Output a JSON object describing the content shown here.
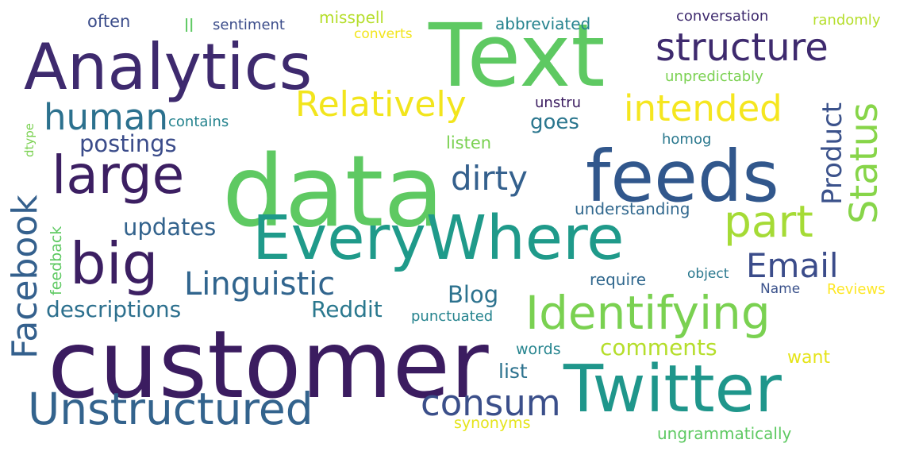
{
  "words": [
    {
      "text": "data",
      "color": "#5ec962"
    },
    {
      "text": "customer",
      "color": "#3b1c60"
    },
    {
      "text": "Text",
      "color": "#5ec962"
    },
    {
      "text": "Analytics",
      "color": "#3e2a6e"
    },
    {
      "text": "EveryWhere",
      "color": "#1f9a8a"
    },
    {
      "text": "feeds",
      "color": "#31578c"
    },
    {
      "text": "Twitter",
      "color": "#1f968b"
    },
    {
      "text": "Identifying",
      "color": "#7ad151"
    },
    {
      "text": "Unstructured",
      "color": "#33638d"
    },
    {
      "text": "large",
      "color": "#3c1f62"
    },
    {
      "text": "big",
      "color": "#3c1f62"
    },
    {
      "text": "part",
      "color": "#a5db36"
    },
    {
      "text": "structure",
      "color": "#3e2a6e"
    },
    {
      "text": "human",
      "color": "#2c718e"
    },
    {
      "text": "Relatively",
      "color": "#f2e51d"
    },
    {
      "text": "intended",
      "color": "#f5e61f"
    },
    {
      "text": "Facebook",
      "color": "#34608d"
    },
    {
      "text": "Status",
      "color": "#87d549"
    },
    {
      "text": "Product",
      "color": "#3b528b"
    },
    {
      "text": "dirty",
      "color": "#34608d"
    },
    {
      "text": "Linguistic",
      "color": "#31658e"
    },
    {
      "text": "Email",
      "color": "#3b4c8a"
    },
    {
      "text": "consum",
      "color": "#3b4f8a"
    },
    {
      "text": "postings",
      "color": "#3b4c8a"
    },
    {
      "text": "updates",
      "color": "#33638d"
    },
    {
      "text": "descriptions",
      "color": "#2d708e"
    },
    {
      "text": "Reddit",
      "color": "#2a788e"
    },
    {
      "text": "Blog",
      "color": "#2c728e"
    },
    {
      "text": "comments",
      "color": "#b5de2b"
    },
    {
      "text": "list",
      "color": "#2c728e"
    },
    {
      "text": "goes",
      "color": "#2a768e"
    },
    {
      "text": "listen",
      "color": "#7ad151"
    },
    {
      "text": "understanding",
      "color": "#31688e"
    },
    {
      "text": "require",
      "color": "#31688e"
    },
    {
      "text": "punctuated",
      "color": "#25838e"
    },
    {
      "text": "words",
      "color": "#25848e"
    },
    {
      "text": "synonyms",
      "color": "#e5e419"
    },
    {
      "text": "ungrammatically",
      "color": "#5ec962"
    },
    {
      "text": "want",
      "color": "#e5e419"
    },
    {
      "text": "Reviews",
      "color": "#fde725"
    },
    {
      "text": "Name",
      "color": "#3b528b"
    },
    {
      "text": "object",
      "color": "#2a788e"
    },
    {
      "text": "homog",
      "color": "#2a788e"
    },
    {
      "text": "unstru",
      "color": "#3b1c60"
    },
    {
      "text": "contains",
      "color": "#25838e"
    },
    {
      "text": "feedback",
      "color": "#5ec962"
    },
    {
      "text": "dtype",
      "color": "#7ad151"
    },
    {
      "text": "often",
      "color": "#3b4c8a"
    },
    {
      "text": "ll",
      "color": "#5ec962"
    },
    {
      "text": "sentiment",
      "color": "#3b4c8a"
    },
    {
      "text": "misspell",
      "color": "#b5de2b"
    },
    {
      "text": "converts",
      "color": "#f2e51d"
    },
    {
      "text": "abbreviated",
      "color": "#25838e"
    },
    {
      "text": "conversation",
      "color": "#3e2a6e"
    },
    {
      "text": "randomly",
      "color": "#b5de2b"
    },
    {
      "text": "unpredictably",
      "color": "#7ad151"
    }
  ]
}
